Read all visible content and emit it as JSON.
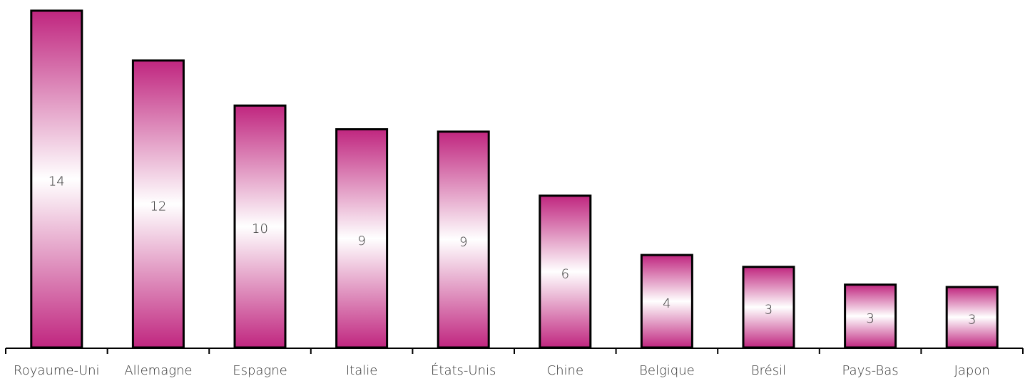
{
  "chart_data": {
    "type": "bar",
    "categories": [
      "Royaume-Uni",
      "Allemagne",
      "Espagne",
      "Italie",
      "États-Unis",
      "Chine",
      "Belgique",
      "Brésil",
      "Pays-Bas",
      "Japon"
    ],
    "values": [
      14.2,
      12.1,
      10.2,
      9.2,
      9.1,
      6.4,
      3.9,
      3.4,
      2.65,
      2.55
    ],
    "value_labels": [
      "14",
      "12",
      "10",
      "9",
      "9",
      "6",
      "4",
      "3",
      "3",
      "3"
    ],
    "color": "#c0267f",
    "ylim": [
      0,
      14.65
    ]
  }
}
